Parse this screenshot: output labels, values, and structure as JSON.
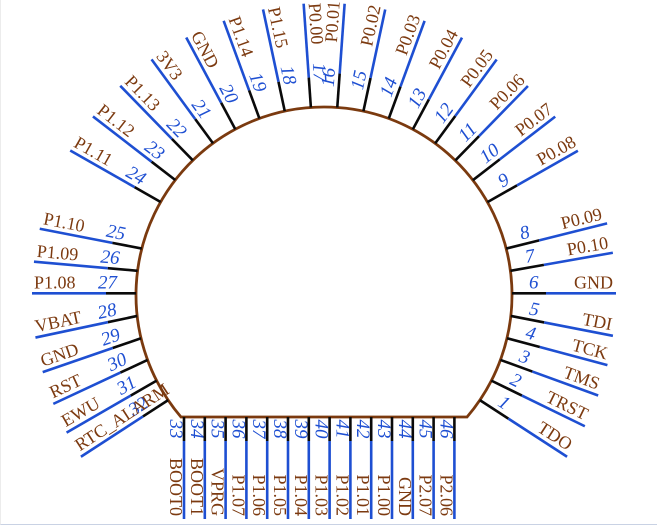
{
  "diagram": {
    "kind": "ic-pinout",
    "colors": {
      "pin_line_blue": "#1e4fd2",
      "pin_number_blue": "#1e4fd2",
      "pin_name_brown": "#7c3a10",
      "body_outline_brown": "#7b3a0f",
      "tick_black": "#0a0a0a",
      "background": "#ffffff",
      "page_edge": "#c9d2e4"
    },
    "pins": [
      {
        "num": 1,
        "name": "TDO"
      },
      {
        "num": 2,
        "name": "TRST"
      },
      {
        "num": 3,
        "name": "TMS"
      },
      {
        "num": 4,
        "name": "TCK"
      },
      {
        "num": 5,
        "name": "TDI"
      },
      {
        "num": 6,
        "name": "GND"
      },
      {
        "num": 7,
        "name": "P0.10"
      },
      {
        "num": 8,
        "name": "P0.09"
      },
      {
        "num": 9,
        "name": "P0.08"
      },
      {
        "num": 10,
        "name": "P0.07"
      },
      {
        "num": 11,
        "name": "P0.06"
      },
      {
        "num": 12,
        "name": "P0.05"
      },
      {
        "num": 13,
        "name": "P0.04"
      },
      {
        "num": 14,
        "name": "P0.03"
      },
      {
        "num": 15,
        "name": "P0.02"
      },
      {
        "num": 16,
        "name": "P0.01"
      },
      {
        "num": 17,
        "name": "P0.00"
      },
      {
        "num": 18,
        "name": "P1.15"
      },
      {
        "num": 19,
        "name": "P1.14"
      },
      {
        "num": 20,
        "name": "GND"
      },
      {
        "num": 21,
        "name": "3V3"
      },
      {
        "num": 22,
        "name": "P1.13"
      },
      {
        "num": 23,
        "name": "P1.12"
      },
      {
        "num": 24,
        "name": "P1.11"
      },
      {
        "num": 25,
        "name": "P1.10"
      },
      {
        "num": 26,
        "name": "P1.09"
      },
      {
        "num": 27,
        "name": "P1.08"
      },
      {
        "num": 28,
        "name": "VBAT"
      },
      {
        "num": 29,
        "name": "GND"
      },
      {
        "num": 30,
        "name": "RST"
      },
      {
        "num": 31,
        "name": "EWU"
      },
      {
        "num": 32,
        "name": "RTC_ALARM"
      },
      {
        "num": 33,
        "name": "BOOT0"
      },
      {
        "num": 34,
        "name": "BOOT1"
      },
      {
        "num": 35,
        "name": "VPRG"
      },
      {
        "num": 36,
        "name": "P1.07"
      },
      {
        "num": 37,
        "name": "P1.06"
      },
      {
        "num": 38,
        "name": "P1.05"
      },
      {
        "num": 39,
        "name": "P1.04"
      },
      {
        "num": 40,
        "name": "P1.03"
      },
      {
        "num": 41,
        "name": "P1.02"
      },
      {
        "num": 42,
        "name": "P1.01"
      },
      {
        "num": 43,
        "name": "P1.00"
      },
      {
        "num": 44,
        "name": "GND"
      },
      {
        "num": 45,
        "name": "P2.07"
      },
      {
        "num": 46,
        "name": "P2.06"
      }
    ]
  }
}
